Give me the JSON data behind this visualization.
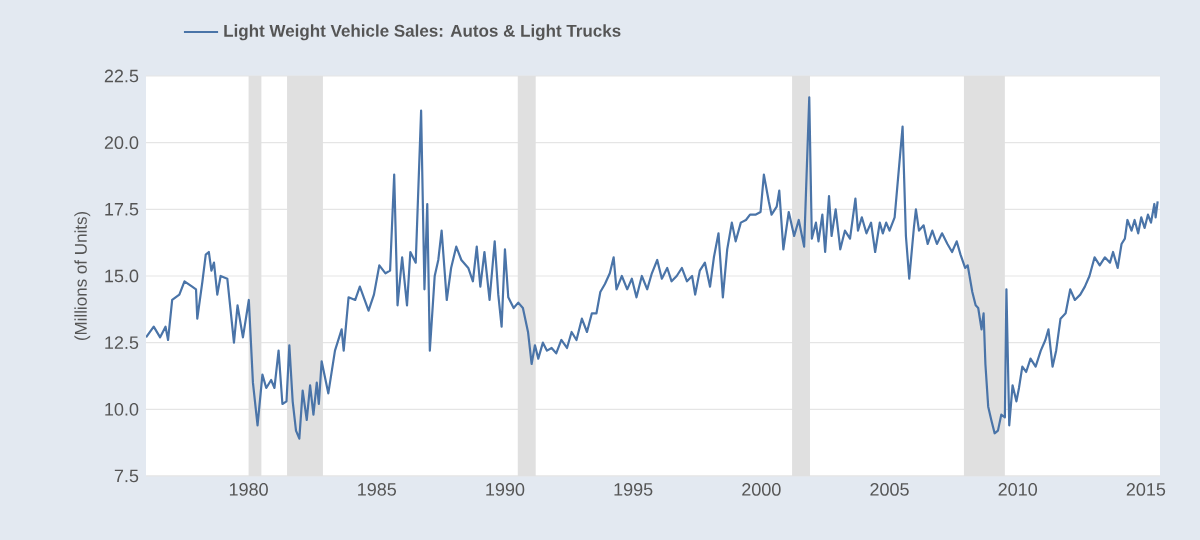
{
  "chart_data": {
    "type": "line",
    "ylabel": "(Millions of Units)",
    "xlim": [
      1976,
      2015.55
    ],
    "xticks": [
      1980,
      1985,
      1990,
      1995,
      2000,
      2005,
      2010,
      2015
    ],
    "ylim": [
      7.5,
      22.5
    ],
    "yticks": [
      7.5,
      {
        "value": 10,
        "label": "10.0"
      },
      12.5,
      {
        "value": 15,
        "label": "15.0"
      },
      17.5,
      {
        "value": 20,
        "label": "20.0"
      },
      22.5
    ],
    "grid": "y",
    "legend": "top left",
    "marker": "none",
    "line_style": "solid",
    "bands": [
      {
        "axis": "x",
        "from": 1980.0,
        "to": 1980.5,
        "color": "#e0e0e0"
      },
      {
        "axis": "x",
        "from": 1981.5,
        "to": 1982.9,
        "color": "#e0e0e0"
      },
      {
        "axis": "x",
        "from": 1990.5,
        "to": 1991.2,
        "color": "#e0e0e0"
      },
      {
        "axis": "x",
        "from": 2001.2,
        "to": 2001.9,
        "color": "#e0e0e0"
      },
      {
        "axis": "x",
        "from": 2007.9,
        "to": 2009.5,
        "color": "#e0e0e0"
      }
    ],
    "series": [
      {
        "name": "Light Weight Vehicle Sales: Autos & Light Trucks",
        "color": "#4a74a8",
        "x": [
          1976.0,
          1976.3,
          1976.55,
          1976.76,
          1976.86,
          1977.02,
          1977.3,
          1977.5,
          1977.8,
          1977.95,
          1978.0,
          1978.2,
          1978.33,
          1978.45,
          1978.55,
          1978.65,
          1978.78,
          1978.91,
          1979.17,
          1979.43,
          1979.57,
          1979.78,
          1980.01,
          1980.17,
          1980.35,
          1980.54,
          1980.69,
          1980.88,
          1981.01,
          1981.17,
          1981.32,
          1981.48,
          1981.59,
          1981.72,
          1981.85,
          1981.98,
          1982.11,
          1982.27,
          1982.4,
          1982.53,
          1982.66,
          1982.74,
          1982.85,
          1983.11,
          1983.37,
          1983.63,
          1983.71,
          1983.9,
          1984.16,
          1984.34,
          1984.68,
          1984.89,
          1985.1,
          1985.34,
          1985.52,
          1985.68,
          1985.81,
          1985.99,
          1986.18,
          1986.31,
          1986.52,
          1986.73,
          1986.86,
          1986.97,
          1987.07,
          1987.26,
          1987.4,
          1987.53,
          1987.73,
          1987.9,
          1988.1,
          1988.3,
          1988.57,
          1988.75,
          1988.9,
          1989.04,
          1989.2,
          1989.4,
          1989.6,
          1989.74,
          1989.87,
          1990.0,
          1990.13,
          1990.34,
          1990.52,
          1990.7,
          1990.9,
          1991.04,
          1991.17,
          1991.3,
          1991.48,
          1991.64,
          1991.82,
          1992.0,
          1992.2,
          1992.42,
          1992.6,
          1992.79,
          1993.0,
          1993.2,
          1993.39,
          1993.57,
          1993.72,
          1993.9,
          1994.09,
          1994.24,
          1994.35,
          1994.56,
          1994.77,
          1994.95,
          1995.13,
          1995.34,
          1995.55,
          1995.73,
          1995.94,
          1996.12,
          1996.33,
          1996.5,
          1996.7,
          1996.9,
          1997.1,
          1997.3,
          1997.42,
          1997.6,
          1997.8,
          1998.0,
          1998.15,
          1998.33,
          1998.5,
          1998.67,
          1998.85,
          1999.0,
          1999.2,
          1999.4,
          1999.56,
          1999.77,
          1999.97,
          2000.1,
          2000.29,
          2000.4,
          2000.6,
          2000.7,
          2000.86,
          2001.07,
          2001.28,
          2001.46,
          2001.67,
          2001.87,
          2001.97,
          2002.13,
          2002.23,
          2002.38,
          2002.49,
          2002.64,
          2002.74,
          2002.9,
          2003.08,
          2003.26,
          2003.46,
          2003.67,
          2003.77,
          2003.92,
          2004.1,
          2004.28,
          2004.44,
          2004.62,
          2004.74,
          2004.87,
          2005.0,
          2005.2,
          2005.51,
          2005.64,
          2005.77,
          2005.95,
          2006.03,
          2006.15,
          2006.33,
          2006.49,
          2006.67,
          2006.85,
          2007.05,
          2007.26,
          2007.44,
          2007.62,
          2007.77,
          2007.95,
          2008.05,
          2008.23,
          2008.36,
          2008.46,
          2008.59,
          2008.67,
          2008.74,
          2008.85,
          2008.97,
          2009.1,
          2009.23,
          2009.36,
          2009.5,
          2009.56,
          2009.67,
          2009.8,
          2009.95,
          2010.05,
          2010.18,
          2010.33,
          2010.5,
          2010.7,
          2010.9,
          2011.08,
          2011.2,
          2011.36,
          2011.5,
          2011.67,
          2011.87,
          2012.05,
          2012.23,
          2012.44,
          2012.62,
          2012.8,
          2013.0,
          2013.2,
          2013.4,
          2013.6,
          2013.72,
          2013.9,
          2014.05,
          2014.18,
          2014.28,
          2014.44,
          2014.56,
          2014.7,
          2014.82,
          2014.95,
          2015.08,
          2015.2,
          2015.33,
          2015.38,
          2015.46
        ],
        "values": [
          12.7,
          13.1,
          12.7,
          13.1,
          12.6,
          14.1,
          14.3,
          14.8,
          14.6,
          14.5,
          13.4,
          14.8,
          15.8,
          15.9,
          15.2,
          15.5,
          14.3,
          15.0,
          14.9,
          12.5,
          13.9,
          12.7,
          14.1,
          11.0,
          9.4,
          11.3,
          10.8,
          11.1,
          10.8,
          12.2,
          10.2,
          10.3,
          12.4,
          10.3,
          9.2,
          8.9,
          10.7,
          9.6,
          10.9,
          9.8,
          11.0,
          10.2,
          11.8,
          10.6,
          12.2,
          13.0,
          12.2,
          14.2,
          14.1,
          14.6,
          13.7,
          14.3,
          15.4,
          15.1,
          15.2,
          18.8,
          13.9,
          15.7,
          13.9,
          15.9,
          15.5,
          21.2,
          14.5,
          17.7,
          12.2,
          15.0,
          15.6,
          16.7,
          14.1,
          15.3,
          16.1,
          15.6,
          15.3,
          14.8,
          16.1,
          14.6,
          15.9,
          14.1,
          16.3,
          14.3,
          13.1,
          16.0,
          14.2,
          13.8,
          14.0,
          13.8,
          12.9,
          11.7,
          12.4,
          11.9,
          12.5,
          12.2,
          12.3,
          12.1,
          12.6,
          12.3,
          12.9,
          12.6,
          13.4,
          12.9,
          13.6,
          13.6,
          14.4,
          14.7,
          15.1,
          15.7,
          14.5,
          15.0,
          14.5,
          14.9,
          14.2,
          15.0,
          14.5,
          15.1,
          15.6,
          14.9,
          15.3,
          14.8,
          15.0,
          15.3,
          14.8,
          15.0,
          14.3,
          15.2,
          15.5,
          14.6,
          15.7,
          16.6,
          14.2,
          16.0,
          17.0,
          16.3,
          17.0,
          17.1,
          17.3,
          17.3,
          17.4,
          18.8,
          17.8,
          17.3,
          17.6,
          18.2,
          16.0,
          17.4,
          16.5,
          17.1,
          16.1,
          21.7,
          16.4,
          17.0,
          16.3,
          17.3,
          15.9,
          18.0,
          16.5,
          17.5,
          16.0,
          16.7,
          16.4,
          17.9,
          16.7,
          17.2,
          16.6,
          17.0,
          15.9,
          17.0,
          16.6,
          17.0,
          16.7,
          17.2,
          20.6,
          16.5,
          14.9,
          16.8,
          17.5,
          16.7,
          16.9,
          16.2,
          16.7,
          16.2,
          16.6,
          16.2,
          15.9,
          16.3,
          15.8,
          15.3,
          15.4,
          14.4,
          13.9,
          13.8,
          13.0,
          13.6,
          11.7,
          10.1,
          9.6,
          9.1,
          9.2,
          9.8,
          9.7,
          14.5,
          9.4,
          10.9,
          10.3,
          10.8,
          11.6,
          11.4,
          11.9,
          11.6,
          12.2,
          12.6,
          13.0,
          11.6,
          12.2,
          13.4,
          13.6,
          14.5,
          14.1,
          14.3,
          14.6,
          15.0,
          15.7,
          15.4,
          15.7,
          15.5,
          15.9,
          15.3,
          16.2,
          16.4,
          17.1,
          16.7,
          17.1,
          16.6,
          17.2,
          16.8,
          17.3,
          17.0,
          17.7,
          17.2,
          17.8
        ]
      }
    ]
  }
}
